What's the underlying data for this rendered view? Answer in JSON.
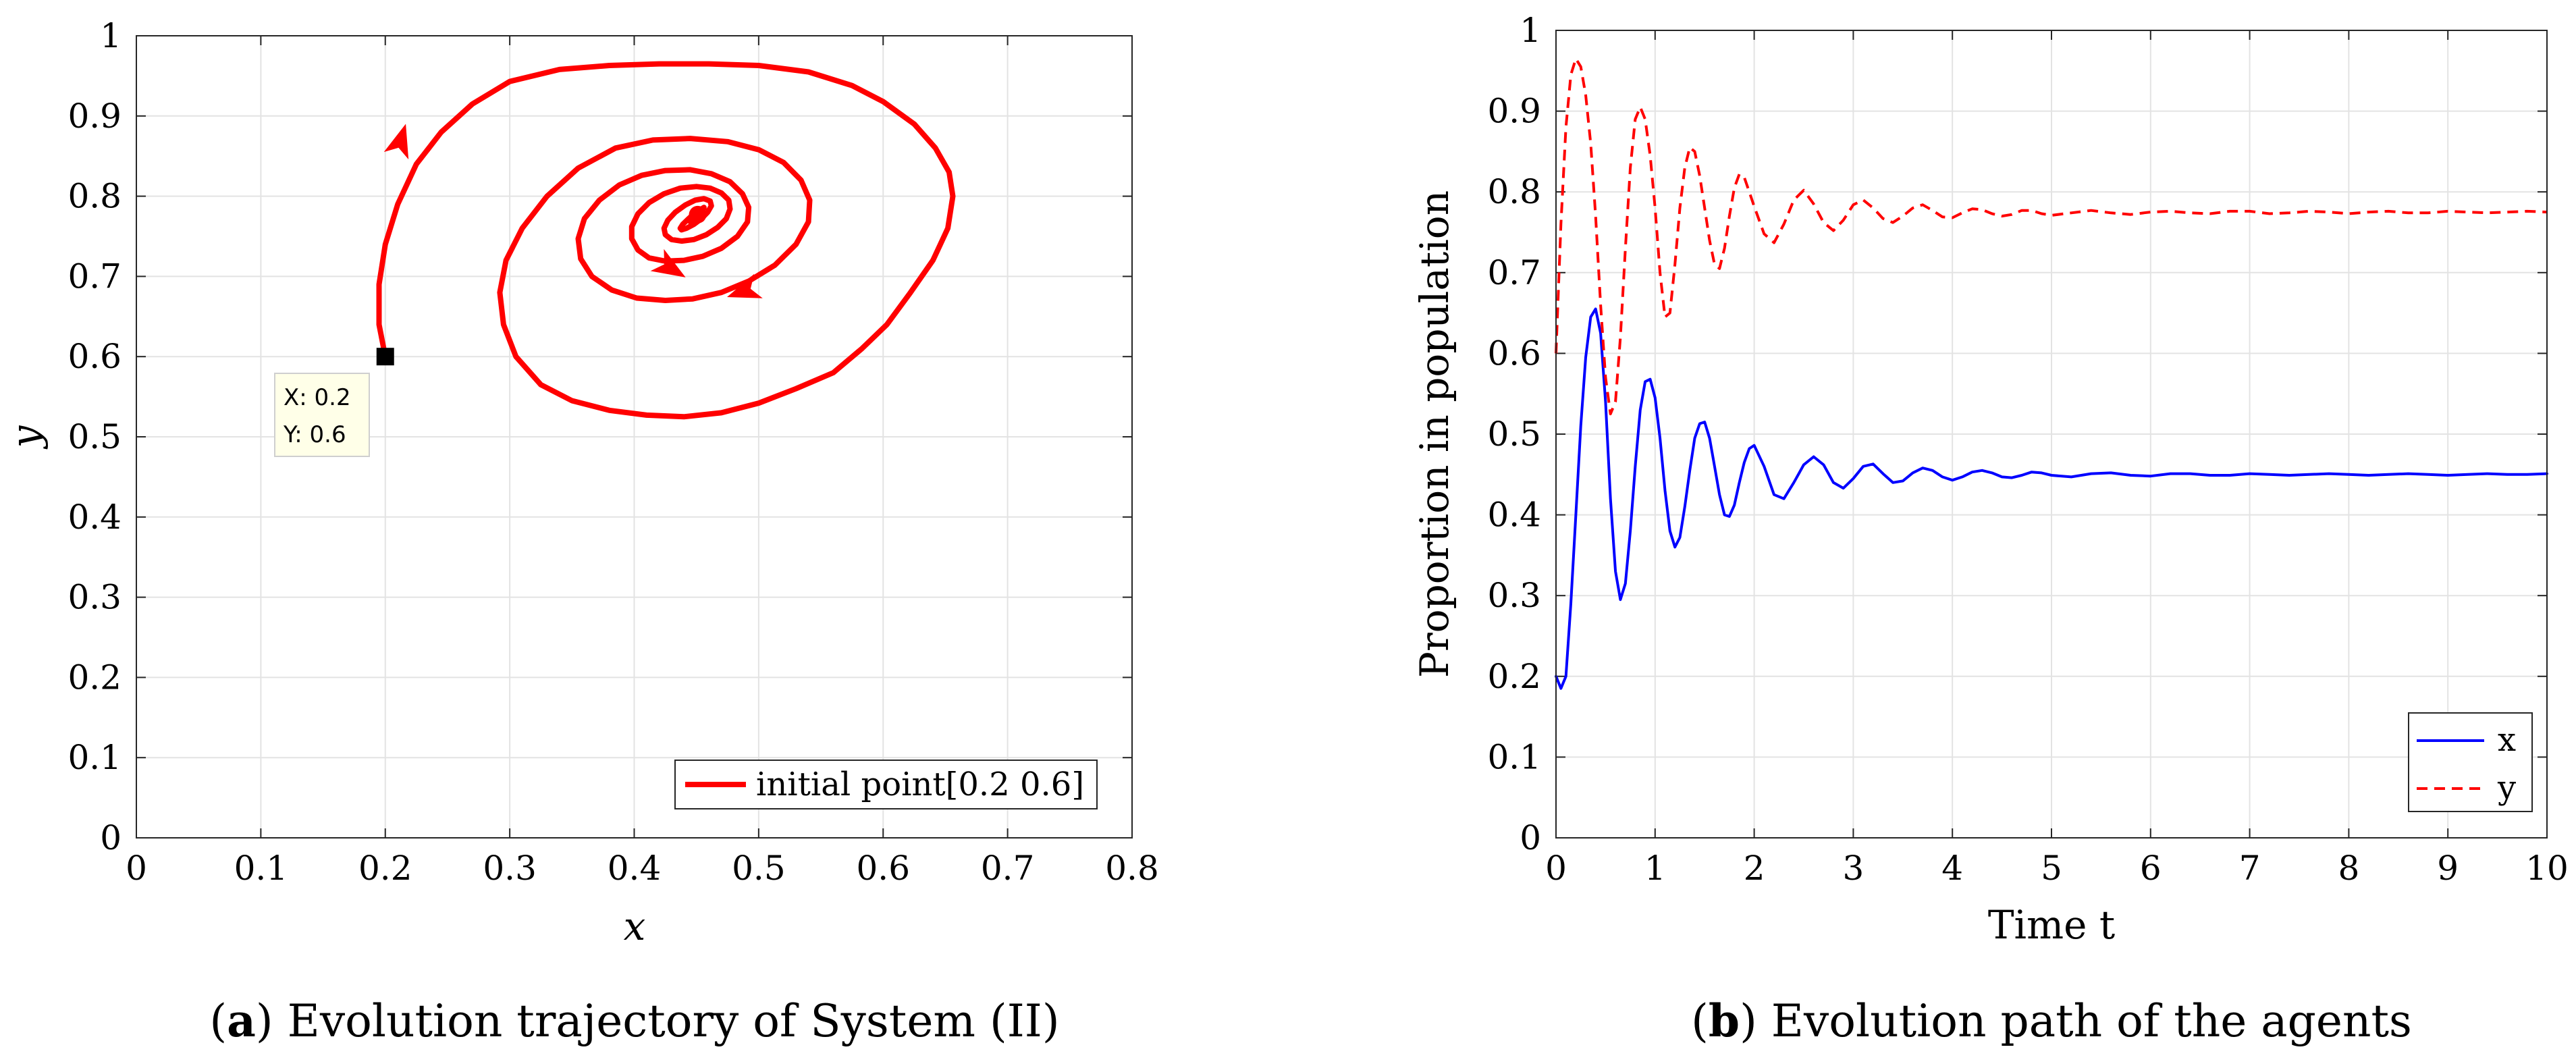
{
  "chart_data": [
    {
      "type": "line",
      "panel_label": "a",
      "caption": "Evolution trajectory of System (II)",
      "xlabel": "x",
      "ylabel": "y",
      "xlim": [
        0,
        0.8
      ],
      "ylim": [
        0,
        1
      ],
      "grid": true,
      "x_ticks": [
        0,
        0.1,
        0.2,
        0.3,
        0.4,
        0.5,
        0.6,
        0.7,
        0.8
      ],
      "x_tick_labels": [
        "0",
        "0.1",
        "0.2",
        "0.3",
        "0.4",
        "0.5",
        "0.6",
        "0.7",
        "0.8"
      ],
      "y_ticks": [
        0,
        0.1,
        0.2,
        0.3,
        0.4,
        0.5,
        0.6,
        0.7,
        0.8,
        0.9,
        1
      ],
      "y_tick_labels": [
        "0",
        "0.1",
        "0.2",
        "0.3",
        "0.4",
        "0.5",
        "0.6",
        "0.7",
        "0.8",
        "0.9",
        "1"
      ],
      "legend": {
        "position": "bottom-right",
        "entries": [
          "initial point[0.2 0.6]"
        ]
      },
      "series": [
        {
          "name": "initial point[0.2 0.6]",
          "color": "#ff0000",
          "style": "solid",
          "x": [
            0.2,
            0.195,
            0.195,
            0.2,
            0.21,
            0.225,
            0.245,
            0.27,
            0.3,
            0.34,
            0.38,
            0.42,
            0.46,
            0.5,
            0.54,
            0.575,
            0.6,
            0.625,
            0.642,
            0.653,
            0.656,
            0.652,
            0.64,
            0.622,
            0.603,
            0.583,
            0.56,
            0.53,
            0.5,
            0.47,
            0.44,
            0.41,
            0.38,
            0.35,
            0.325,
            0.305,
            0.295,
            0.292,
            0.297,
            0.31,
            0.33,
            0.355,
            0.385,
            0.415,
            0.445,
            0.475,
            0.5,
            0.52,
            0.534,
            0.541,
            0.54,
            0.53,
            0.513,
            0.492,
            0.47,
            0.447,
            0.425,
            0.402,
            0.382,
            0.366,
            0.357,
            0.355,
            0.36,
            0.372,
            0.388,
            0.406,
            0.425,
            0.445,
            0.462,
            0.477,
            0.487,
            0.492,
            0.491,
            0.483,
            0.47,
            0.455,
            0.44,
            0.425,
            0.412,
            0.403,
            0.398,
            0.398,
            0.403,
            0.412,
            0.424,
            0.437,
            0.45,
            0.461,
            0.47,
            0.476,
            0.477,
            0.474,
            0.467,
            0.458,
            0.448,
            0.438,
            0.43,
            0.425,
            0.424,
            0.427,
            0.433,
            0.441,
            0.449,
            0.456,
            0.461,
            0.462,
            0.459,
            0.454,
            0.448,
            0.442,
            0.438,
            0.437,
            0.439,
            0.443,
            0.448,
            0.453,
            0.456,
            0.456,
            0.453,
            0.449,
            0.446,
            0.445,
            0.447,
            0.45,
            0.452,
            0.451
          ],
          "y": [
            0.6,
            0.64,
            0.69,
            0.74,
            0.79,
            0.84,
            0.88,
            0.915,
            0.943,
            0.958,
            0.963,
            0.965,
            0.965,
            0.963,
            0.955,
            0.938,
            0.918,
            0.89,
            0.86,
            0.83,
            0.8,
            0.76,
            0.72,
            0.68,
            0.64,
            0.61,
            0.58,
            0.56,
            0.542,
            0.53,
            0.525,
            0.527,
            0.533,
            0.545,
            0.565,
            0.6,
            0.64,
            0.68,
            0.72,
            0.76,
            0.8,
            0.835,
            0.86,
            0.87,
            0.872,
            0.868,
            0.858,
            0.842,
            0.82,
            0.795,
            0.768,
            0.74,
            0.714,
            0.694,
            0.68,
            0.672,
            0.67,
            0.673,
            0.683,
            0.7,
            0.722,
            0.747,
            0.772,
            0.795,
            0.814,
            0.826,
            0.832,
            0.833,
            0.828,
            0.818,
            0.803,
            0.786,
            0.768,
            0.75,
            0.735,
            0.725,
            0.72,
            0.719,
            0.723,
            0.733,
            0.747,
            0.762,
            0.778,
            0.792,
            0.803,
            0.81,
            0.812,
            0.81,
            0.804,
            0.795,
            0.784,
            0.772,
            0.761,
            0.752,
            0.746,
            0.744,
            0.746,
            0.752,
            0.76,
            0.77,
            0.78,
            0.789,
            0.795,
            0.797,
            0.794,
            0.788,
            0.78,
            0.772,
            0.765,
            0.76,
            0.758,
            0.76,
            0.765,
            0.771,
            0.778,
            0.783,
            0.786,
            0.785,
            0.781,
            0.776,
            0.771,
            0.768,
            0.768,
            0.771,
            0.775,
            0.777
          ]
        }
      ],
      "annotations": {
        "start_marker": {
          "x": 0.2,
          "y": 0.6
        },
        "datatip": {
          "line1": "X: 0.2",
          "line2": "Y: 0.6"
        },
        "arrows": [
          {
            "x": 0.216,
            "y": 0.888,
            "dx": 0.3,
            "dy": 1.0
          },
          {
            "x": 0.476,
            "y": 0.675,
            "dx": -1.0,
            "dy": -0.35
          },
          {
            "x": 0.44,
            "y": 0.7,
            "dx": 0.9,
            "dy": -0.55
          }
        ]
      }
    },
    {
      "type": "line",
      "panel_label": "b",
      "caption": "Evolution path of the agents",
      "xlabel": "Time t",
      "ylabel": "Proportion in population",
      "xlim": [
        0,
        10
      ],
      "ylim": [
        0,
        1
      ],
      "grid": true,
      "x_ticks": [
        0,
        1,
        2,
        3,
        4,
        5,
        6,
        7,
        8,
        9,
        10
      ],
      "x_tick_labels": [
        "0",
        "1",
        "2",
        "3",
        "4",
        "5",
        "6",
        "7",
        "8",
        "9",
        "10"
      ],
      "y_ticks": [
        0,
        0.1,
        0.2,
        0.3,
        0.4,
        0.5,
        0.6,
        0.7,
        0.8,
        0.9,
        1
      ],
      "y_tick_labels": [
        "0",
        "0.1",
        "0.2",
        "0.3",
        "0.4",
        "0.5",
        "0.6",
        "0.7",
        "0.8",
        "0.9",
        "1"
      ],
      "legend": {
        "position": "bottom-right",
        "entries": [
          "x",
          "y"
        ]
      },
      "series": [
        {
          "name": "x",
          "color": "#0000ff",
          "style": "solid",
          "x": [
            0,
            0.05,
            0.1,
            0.15,
            0.2,
            0.25,
            0.3,
            0.35,
            0.4,
            0.45,
            0.5,
            0.55,
            0.6,
            0.65,
            0.7,
            0.75,
            0.8,
            0.85,
            0.9,
            0.95,
            1.0,
            1.05,
            1.1,
            1.15,
            1.2,
            1.25,
            1.3,
            1.35,
            1.4,
            1.45,
            1.5,
            1.55,
            1.6,
            1.65,
            1.7,
            1.75,
            1.8,
            1.85,
            1.9,
            1.95,
            2.0,
            2.1,
            2.2,
            2.3,
            2.4,
            2.5,
            2.6,
            2.7,
            2.8,
            2.9,
            3.0,
            3.1,
            3.2,
            3.3,
            3.4,
            3.5,
            3.6,
            3.7,
            3.8,
            3.9,
            4.0,
            4.1,
            4.2,
            4.3,
            4.4,
            4.5,
            4.6,
            4.7,
            4.8,
            4.9,
            5.0,
            5.2,
            5.4,
            5.6,
            5.8,
            6.0,
            6.2,
            6.4,
            6.6,
            6.8,
            7.0,
            7.2,
            7.4,
            7.6,
            7.8,
            8.0,
            8.2,
            8.4,
            8.6,
            8.8,
            9.0,
            9.2,
            9.4,
            9.6,
            9.8,
            10.0
          ],
          "values": [
            0.2,
            0.185,
            0.2,
            0.29,
            0.4,
            0.51,
            0.595,
            0.645,
            0.655,
            0.625,
            0.54,
            0.42,
            0.33,
            0.295,
            0.315,
            0.38,
            0.46,
            0.53,
            0.565,
            0.568,
            0.545,
            0.495,
            0.43,
            0.38,
            0.36,
            0.372,
            0.41,
            0.455,
            0.495,
            0.513,
            0.515,
            0.495,
            0.46,
            0.425,
            0.4,
            0.398,
            0.412,
            0.44,
            0.465,
            0.482,
            0.486,
            0.46,
            0.425,
            0.42,
            0.44,
            0.462,
            0.472,
            0.462,
            0.44,
            0.433,
            0.445,
            0.46,
            0.463,
            0.451,
            0.44,
            0.442,
            0.452,
            0.458,
            0.455,
            0.447,
            0.443,
            0.447,
            0.453,
            0.455,
            0.452,
            0.447,
            0.446,
            0.449,
            0.453,
            0.452,
            0.449,
            0.447,
            0.451,
            0.452,
            0.449,
            0.448,
            0.451,
            0.451,
            0.449,
            0.449,
            0.451,
            0.45,
            0.449,
            0.45,
            0.451,
            0.45,
            0.449,
            0.45,
            0.451,
            0.45,
            0.449,
            0.45,
            0.451,
            0.45,
            0.45,
            0.451
          ]
        },
        {
          "name": "y",
          "color": "#ff0000",
          "style": "dashed",
          "x": [
            0,
            0.05,
            0.1,
            0.15,
            0.2,
            0.25,
            0.3,
            0.35,
            0.4,
            0.45,
            0.5,
            0.55,
            0.6,
            0.65,
            0.7,
            0.75,
            0.8,
            0.85,
            0.9,
            0.95,
            1.0,
            1.05,
            1.1,
            1.15,
            1.2,
            1.25,
            1.3,
            1.35,
            1.4,
            1.45,
            1.5,
            1.55,
            1.6,
            1.65,
            1.7,
            1.75,
            1.8,
            1.85,
            1.9,
            1.95,
            2.0,
            2.1,
            2.2,
            2.3,
            2.4,
            2.5,
            2.6,
            2.7,
            2.8,
            2.9,
            3.0,
            3.1,
            3.2,
            3.3,
            3.4,
            3.5,
            3.6,
            3.7,
            3.8,
            3.9,
            4.0,
            4.1,
            4.2,
            4.3,
            4.4,
            4.5,
            4.6,
            4.7,
            4.8,
            4.9,
            5.0,
            5.2,
            5.4,
            5.6,
            5.8,
            6.0,
            6.2,
            6.4,
            6.6,
            6.8,
            7.0,
            7.2,
            7.4,
            7.6,
            7.8,
            8.0,
            8.2,
            8.4,
            8.6,
            8.8,
            9.0,
            9.2,
            9.4,
            9.6,
            9.8,
            10.0
          ],
          "values": [
            0.6,
            0.76,
            0.88,
            0.945,
            0.965,
            0.955,
            0.92,
            0.86,
            0.77,
            0.66,
            0.57,
            0.525,
            0.54,
            0.62,
            0.73,
            0.83,
            0.89,
            0.905,
            0.89,
            0.845,
            0.78,
            0.7,
            0.645,
            0.65,
            0.71,
            0.78,
            0.83,
            0.855,
            0.85,
            0.82,
            0.78,
            0.74,
            0.71,
            0.705,
            0.73,
            0.77,
            0.805,
            0.822,
            0.818,
            0.8,
            0.782,
            0.748,
            0.737,
            0.76,
            0.79,
            0.802,
            0.785,
            0.762,
            0.752,
            0.765,
            0.784,
            0.79,
            0.78,
            0.767,
            0.762,
            0.77,
            0.78,
            0.784,
            0.777,
            0.769,
            0.768,
            0.774,
            0.779,
            0.778,
            0.773,
            0.77,
            0.772,
            0.777,
            0.777,
            0.773,
            0.771,
            0.774,
            0.777,
            0.774,
            0.772,
            0.775,
            0.776,
            0.774,
            0.773,
            0.776,
            0.776,
            0.773,
            0.774,
            0.776,
            0.775,
            0.773,
            0.775,
            0.776,
            0.774,
            0.774,
            0.776,
            0.775,
            0.774,
            0.775,
            0.776,
            0.775
          ]
        }
      ]
    }
  ]
}
